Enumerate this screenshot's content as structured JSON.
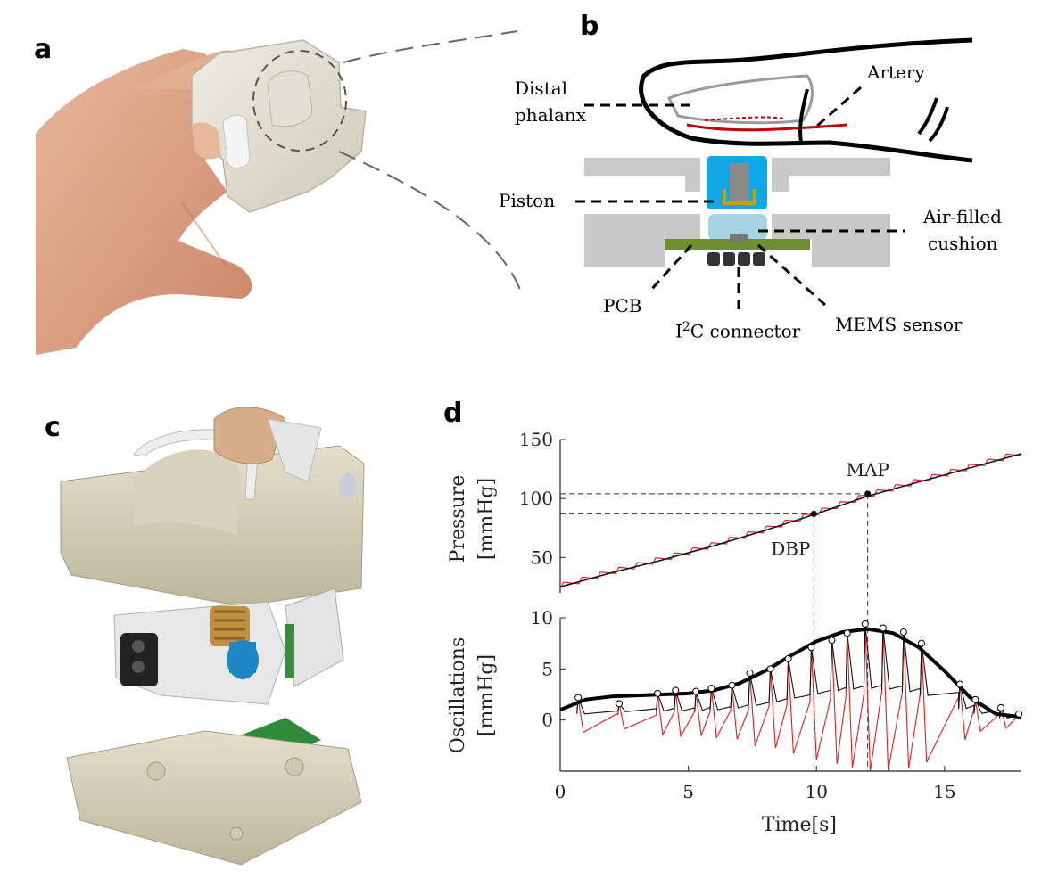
{
  "panels": {
    "a": {
      "letter": "a"
    },
    "b": {
      "letter": "b",
      "labels": {
        "distal_phalanx_1": "Distal",
        "distal_phalanx_2": "phalanx",
        "artery": "Artery",
        "piston": "Piston",
        "cushion_1": "Air-filled",
        "cushion_2": "cushion",
        "pcb": "PCB",
        "i2c_prefix": "I",
        "i2c_sup": "2",
        "i2c_suffix": "C connector",
        "mems": "MEMS sensor"
      }
    },
    "c": {
      "letter": "c"
    },
    "d": {
      "letter": "d"
    }
  },
  "chart_data": [
    {
      "type": "line",
      "ylabel_line1": "Pressure",
      "ylabel_line2": "[mmHg]",
      "ylim": [
        20,
        150
      ],
      "xlim": [
        0,
        18
      ],
      "yticks": [
        "50",
        "100",
        "150"
      ],
      "annotations": [
        {
          "text": "MAP",
          "x": 12.0,
          "y": 104
        },
        {
          "text": "DBP",
          "x": 9.9,
          "y": 87
        }
      ],
      "series": [
        {
          "role": "trend",
          "color": "#111111",
          "x": [
            0,
            2,
            4,
            6,
            8,
            10,
            12,
            14,
            16,
            18
          ],
          "values": [
            25,
            37,
            48,
            60,
            73,
            87,
            102,
            114,
            126,
            138
          ]
        },
        {
          "role": "measured",
          "color": "#e02020"
        }
      ]
    },
    {
      "type": "line",
      "ylabel_line1": "Oscillations",
      "ylabel_line2": "[mmHg]",
      "xlabel": "Time[s]",
      "ylim": [
        -5,
        10
      ],
      "xlim": [
        0,
        18
      ],
      "yticks": [
        "0",
        "5",
        "10"
      ],
      "xticks": [
        "0",
        "5",
        "10",
        "15"
      ],
      "series": [
        {
          "role": "envelope",
          "color": "#000000",
          "x": [
            0,
            1,
            2,
            3,
            4,
            5,
            6,
            7,
            8,
            9,
            10,
            11,
            12,
            13,
            14,
            15,
            16,
            17,
            18
          ],
          "values": [
            1.0,
            2.0,
            2.3,
            2.4,
            2.5,
            2.6,
            2.9,
            3.6,
            4.8,
            6.3,
            7.7,
            8.6,
            8.9,
            8.5,
            7.1,
            4.8,
            2.2,
            0.6,
            0.3
          ]
        },
        {
          "role": "peaks",
          "x": [
            0.7,
            2.3,
            3.8,
            4.5,
            5.3,
            5.9,
            6.7,
            7.4,
            8.2,
            8.9,
            9.8,
            10.6,
            11.2,
            11.9,
            12.6,
            13.4,
            14.1,
            15.6,
            16.2,
            17.2,
            17.9
          ],
          "values": [
            2.2,
            1.6,
            2.6,
            2.9,
            2.8,
            3.1,
            3.4,
            4.6,
            5.0,
            6.0,
            7.1,
            7.8,
            8.5,
            9.4,
            9.0,
            8.6,
            7.5,
            3.5,
            2.0,
            1.2,
            0.6
          ]
        }
      ]
    }
  ]
}
